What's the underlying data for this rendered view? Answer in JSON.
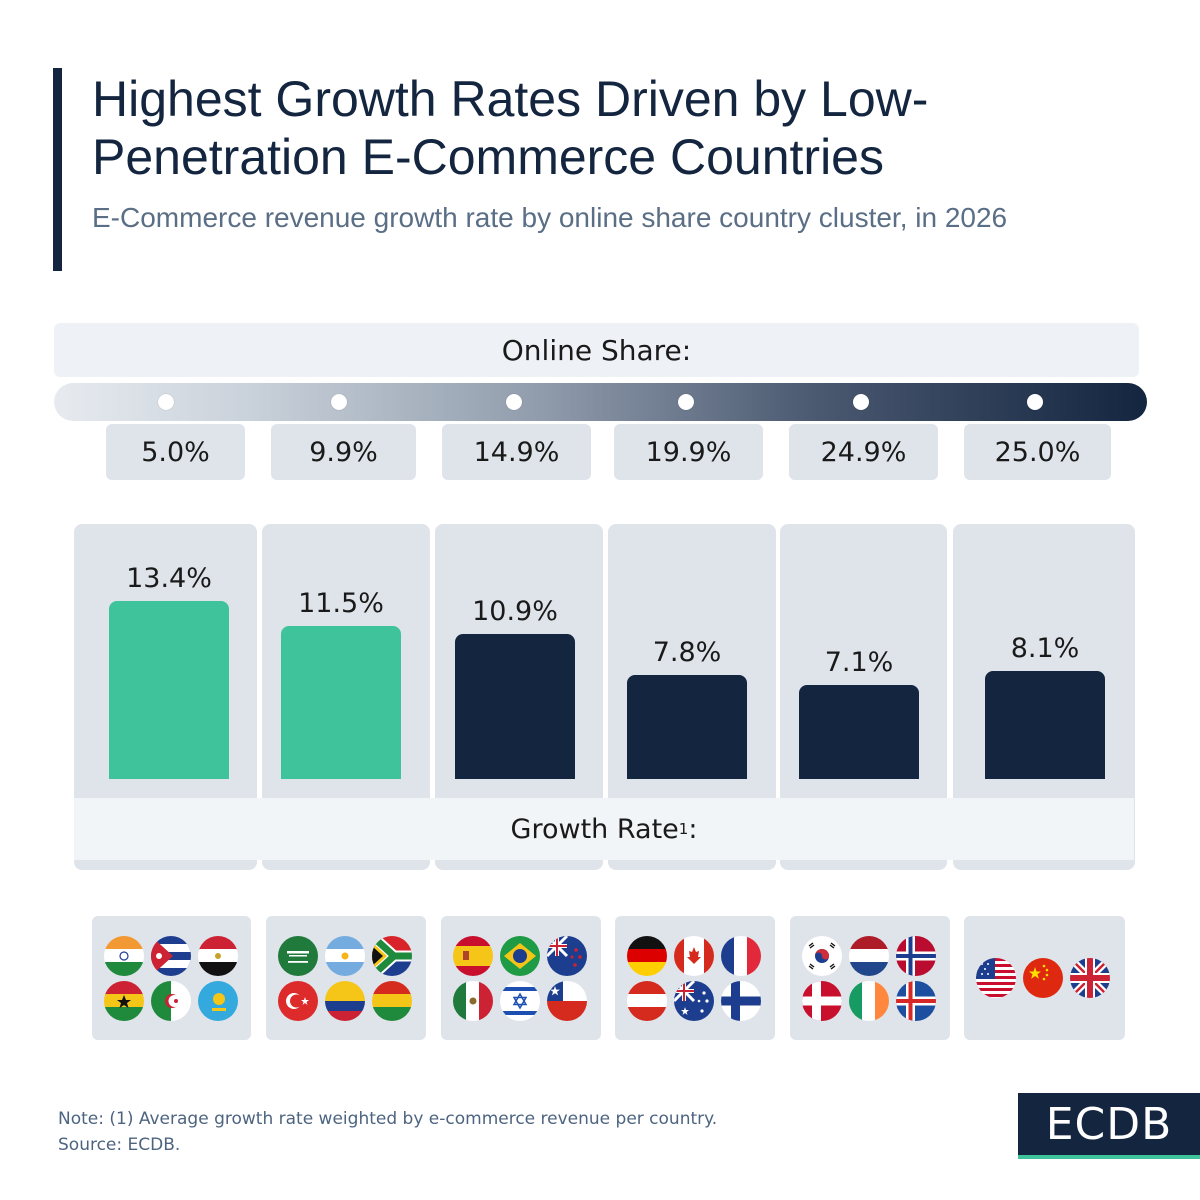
{
  "title": "Highest Growth Rates Driven by Low-Penetration E-Commerce Countries",
  "subtitle": "E-Commerce revenue growth rate by online share country cluster, in 2026",
  "online_share_header": "Online Share:",
  "growth_rate_header": "Growth Rate",
  "growth_rate_footnote_mark": "1",
  "growth_rate_suffix": ":",
  "note": "Note: (1) Average growth rate weighted by e-commerce revenue per country.",
  "source": "Source: ECDB.",
  "logo": "ECDB",
  "colors": {
    "highlight": "#3fc39b",
    "primary": "#13253f",
    "panel": "#dfe4ea"
  },
  "chart_data": {
    "type": "bar",
    "title": "Highest Growth Rates Driven by Low-Penetration E-Commerce Countries",
    "xlabel": "Online Share:",
    "ylabel": "Growth Rate",
    "categories": [
      "5.0%",
      "9.9%",
      "14.9%",
      "19.9%",
      "24.9%",
      "25.0%"
    ],
    "values": [
      13.4,
      11.5,
      10.9,
      7.8,
      7.1,
      8.1
    ],
    "value_labels": [
      "13.4%",
      "11.5%",
      "10.9%",
      "7.8%",
      "7.1%",
      "8.1%"
    ],
    "highlighted": [
      true,
      true,
      false,
      false,
      false,
      false
    ]
  },
  "flag_groups": [
    [
      "india-flag",
      "cuba-flag",
      "egypt-flag",
      "ghana-flag",
      "algeria-flag",
      "kazakhstan-flag"
    ],
    [
      "saudi-arabia-flag",
      "argentina-flag",
      "south-africa-flag",
      "turkey-flag",
      "colombia-flag",
      "bolivia-flag"
    ],
    [
      "spain-flag",
      "brazil-flag",
      "new-zealand-flag",
      "mexico-flag",
      "israel-flag",
      "chile-flag"
    ],
    [
      "germany-flag",
      "canada-flag",
      "france-flag",
      "austria-flag",
      "australia-flag",
      "finland-flag"
    ],
    [
      "south-korea-flag",
      "netherlands-flag",
      "norway-flag",
      "denmark-flag",
      "ireland-flag",
      "iceland-flag"
    ],
    [
      "usa-flag",
      "china-flag",
      "uk-flag"
    ]
  ]
}
